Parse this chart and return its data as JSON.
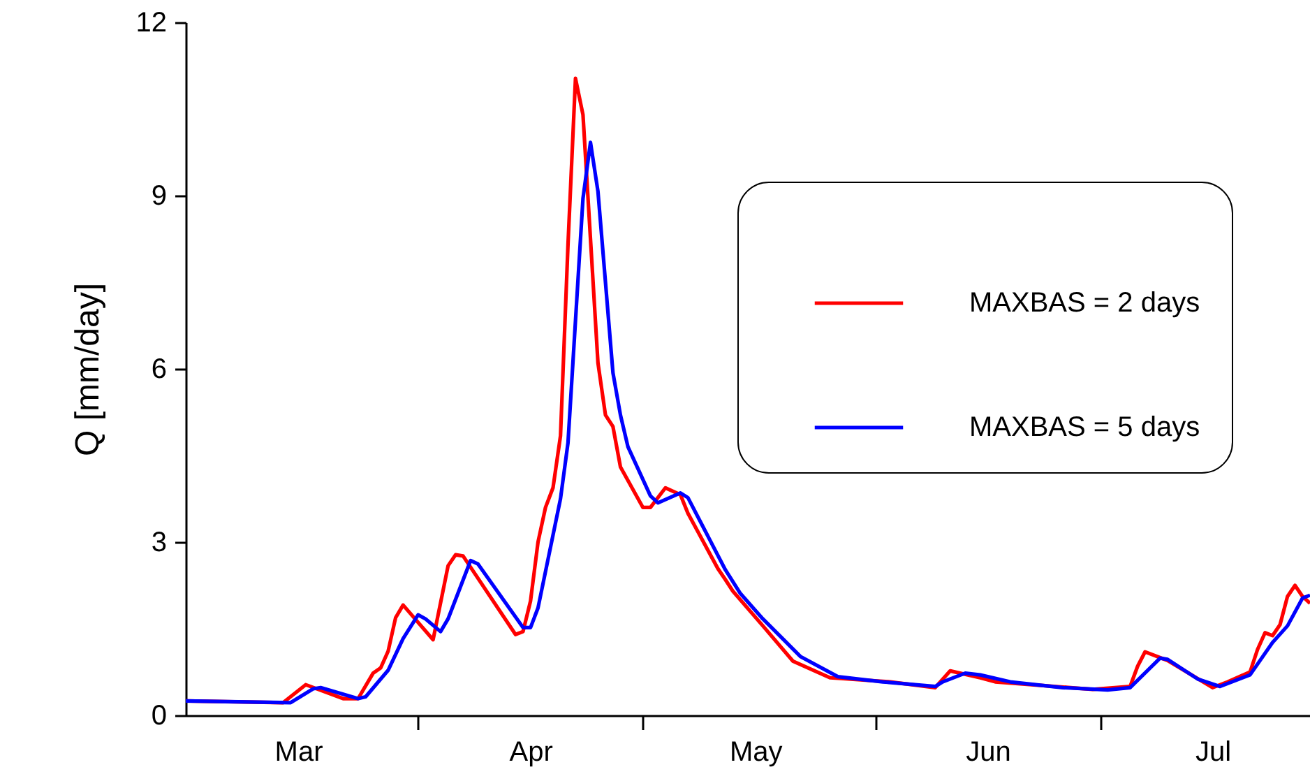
{
  "chart_data": {
    "type": "line",
    "ylabel": "Q [mm/day]",
    "xlim": [
      "--03-01",
      "--07-29"
    ],
    "xticks": [
      {
        "value": "--03-16",
        "label": "Mar"
      },
      {
        "value": "--04-01",
        "label": null
      },
      {
        "value": "--04-16",
        "label": "Apr"
      },
      {
        "value": "--05-01",
        "label": null
      },
      {
        "value": "--05-16",
        "label": "May"
      },
      {
        "value": "--06-01",
        "label": null
      },
      {
        "value": "--06-16",
        "label": "Jun"
      },
      {
        "value": "--07-01",
        "label": null
      },
      {
        "value": "--07-16",
        "label": "Jul"
      }
    ],
    "ylim": [
      0,
      12
    ],
    "yticks": [
      0,
      3,
      6,
      9,
      12
    ],
    "grid": false,
    "legend": "top right",
    "line_style": "solid",
    "series": [
      {
        "name": "MAXBAS = 2 days",
        "color": "#ff0000",
        "x": [
          "--03-01",
          "--03-14",
          "--03-17",
          "--03-22",
          "--03-24",
          "--03-26",
          "--03-27",
          "--03-28",
          "--03-29",
          "--03-30",
          "--04-03",
          "--04-05",
          "--04-06",
          "--04-07",
          "--04-14",
          "--04-15",
          "--04-16",
          "--04-17",
          "--04-18",
          "--04-19",
          "--04-20",
          "--04-21",
          "--04-22",
          "--04-23",
          "--04-25",
          "--04-26",
          "--04-27",
          "--04-28",
          "--05-01",
          "--05-02",
          "--05-04",
          "--05-06",
          "--05-07",
          "--05-11",
          "--05-12",
          "--05-13",
          "--05-17",
          "--05-21",
          "--05-26",
          "--06-03",
          "--06-09",
          "--06-11",
          "--06-15",
          "--06-17",
          "--06-30",
          "--07-05",
          "--07-06",
          "--07-07",
          "--07-10",
          "--07-16",
          "--07-18",
          "--07-21",
          "--07-22",
          "--07-23",
          "--07-24",
          "--07-25",
          "--07-26",
          "--07-27",
          "--07-28",
          "--07-29"
        ],
        "values": [
          0.25,
          0.22,
          0.53,
          0.29,
          0.29,
          0.73,
          0.82,
          1.11,
          1.69,
          1.91,
          1.31,
          2.59,
          2.78,
          2.76,
          1.4,
          1.45,
          1.98,
          3.0,
          3.6,
          3.94,
          4.84,
          8.15,
          11.03,
          10.4,
          6.1,
          5.2,
          5.0,
          4.3,
          3.6,
          3.6,
          3.94,
          3.82,
          3.5,
          2.54,
          2.35,
          2.15,
          1.55,
          0.94,
          0.65,
          0.58,
          0.48,
          0.77,
          0.65,
          0.58,
          0.45,
          0.5,
          0.85,
          1.1,
          0.95,
          0.48,
          0.58,
          0.75,
          1.14,
          1.43,
          1.38,
          1.57,
          2.06,
          2.25,
          2.06,
          1.94
        ]
      },
      {
        "name": "MAXBAS = 5 days",
        "color": "#0000ff",
        "x": [
          "--03-01",
          "--03-15",
          "--03-18",
          "--03-19",
          "--03-24",
          "--03-25",
          "--03-28",
          "--03-30",
          "--04-01",
          "--04-02",
          "--04-04",
          "--04-05",
          "--04-08",
          "--04-09",
          "--04-15",
          "--04-16",
          "--04-17",
          "--04-20",
          "--04-21",
          "--04-23",
          "--04-24",
          "--04-25",
          "--04-27",
          "--04-28",
          "--04-29",
          "--05-02",
          "--05-03",
          "--05-06",
          "--05-07",
          "--05-09",
          "--05-12",
          "--05-14",
          "--05-17",
          "--05-22",
          "--05-27",
          "--06-02",
          "--06-09",
          "--06-10",
          "--06-13",
          "--06-15",
          "--06-19",
          "--06-26",
          "--07-02",
          "--07-05",
          "--07-09",
          "--07-10",
          "--07-14",
          "--07-17",
          "--07-21",
          "--07-24",
          "--07-26",
          "--07-28",
          "--07-29"
        ],
        "values": [
          0.25,
          0.22,
          0.46,
          0.48,
          0.29,
          0.32,
          0.78,
          1.33,
          1.74,
          1.67,
          1.45,
          1.67,
          2.68,
          2.62,
          1.52,
          1.52,
          1.86,
          3.75,
          4.72,
          8.95,
          9.92,
          9.07,
          5.93,
          5.2,
          4.65,
          3.8,
          3.68,
          3.85,
          3.77,
          3.27,
          2.52,
          2.11,
          1.67,
          1.02,
          0.67,
          0.58,
          0.5,
          0.58,
          0.73,
          0.7,
          0.58,
          0.48,
          0.44,
          0.48,
          0.99,
          0.97,
          0.63,
          0.5,
          0.7,
          1.26,
          1.55,
          2.03,
          2.08
        ]
      }
    ]
  }
}
